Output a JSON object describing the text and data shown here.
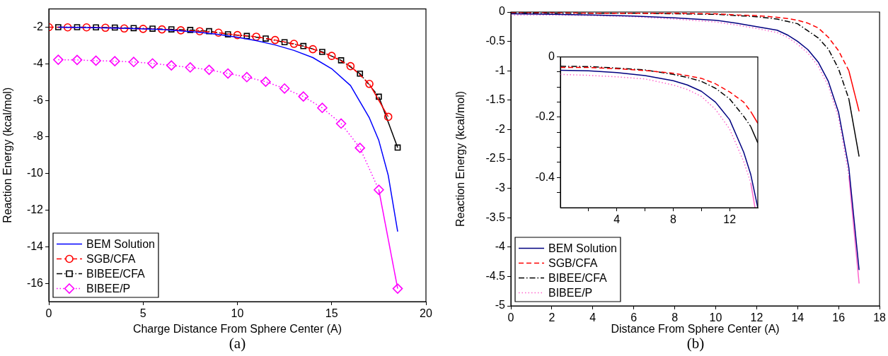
{
  "chart_data": [
    {
      "type": "line",
      "xlabel": "Charge Distance From Sphere Center (A)",
      "ylabel": "Reaction Energy (kcal/mol)",
      "xlim": [
        0,
        20
      ],
      "ylim": [
        -17,
        -1
      ],
      "xticks": [
        0,
        5,
        10,
        15,
        20
      ],
      "yticks": [
        -16,
        -14,
        -12,
        -10,
        -8,
        -6,
        -4,
        -2
      ],
      "legend": "bottom left",
      "annotations": [
        "(a)"
      ],
      "series": [
        {
          "name": "BEM Solution",
          "color": "#0000ff",
          "marker": "none",
          "line_style": "solid",
          "x": [
            0.5,
            2,
            4,
            6,
            7,
            8,
            9,
            10,
            11,
            12,
            13,
            14,
            15,
            16,
            17,
            17.5,
            18,
            18.5
          ],
          "values": [
            -2.0,
            -2.02,
            -2.06,
            -2.13,
            -2.2,
            -2.28,
            -2.4,
            -2.55,
            -2.73,
            -2.97,
            -3.27,
            -3.66,
            -4.27,
            -5.19,
            -6.96,
            -8.19,
            -10.1,
            -13.17
          ]
        },
        {
          "name": "SGB/CFA",
          "color": "#ff0000",
          "marker": "circle",
          "line_style": "dashed",
          "x": [
            0,
            1,
            2,
            3,
            4,
            5,
            6,
            7,
            8,
            9,
            10,
            11,
            12,
            13,
            14,
            15,
            16,
            17,
            18
          ],
          "values": [
            -2.0,
            -2.01,
            -2.01,
            -2.03,
            -2.07,
            -2.09,
            -2.12,
            -2.17,
            -2.22,
            -2.3,
            -2.43,
            -2.52,
            -2.7,
            -2.91,
            -3.2,
            -3.57,
            -4.13,
            -5.1,
            -6.9
          ]
        },
        {
          "name": "BIBEE/CFA",
          "color": "#000000",
          "marker": "square",
          "line_style": "dashdot",
          "x": [
            0.5,
            1.5,
            2.5,
            3.5,
            4.5,
            5.5,
            6.5,
            7.5,
            8.5,
            9.5,
            10.5,
            11.5,
            12.5,
            13.5,
            14.5,
            15.5,
            16.5,
            17.5,
            18.5
          ],
          "values": [
            -2.0,
            -2.0,
            -2.01,
            -2.02,
            -2.05,
            -2.08,
            -2.12,
            -2.15,
            -2.22,
            -2.39,
            -2.48,
            -2.62,
            -2.82,
            -3.03,
            -3.35,
            -3.81,
            -4.54,
            -5.8,
            -8.58
          ]
        },
        {
          "name": "BIBEE/P",
          "color": "#ff00ff",
          "marker": "diamond",
          "line_style": "dotted",
          "x": [
            0.5,
            1.5,
            2.5,
            3.5,
            4.5,
            5.5,
            6.5,
            7.5,
            8.5,
            9.5,
            10.5,
            11.5,
            12.5,
            13.5,
            14.5,
            15.5,
            16.5,
            17.5,
            18.5
          ],
          "values": [
            -3.78,
            -3.79,
            -3.83,
            -3.86,
            -3.9,
            -3.98,
            -4.09,
            -4.2,
            -4.33,
            -4.53,
            -4.73,
            -4.98,
            -5.35,
            -5.79,
            -6.41,
            -7.27,
            -8.6,
            -10.89,
            -16.29
          ]
        }
      ]
    },
    {
      "type": "line",
      "xlabel": "Distance From Sphere Center (A)",
      "ylabel": "Reaction Energy (kcal/mol)",
      "xlim": [
        0,
        18
      ],
      "ylim": [
        -5,
        0
      ],
      "xticks": [
        0,
        2,
        4,
        6,
        8,
        10,
        12,
        14,
        16,
        18
      ],
      "yticks": [
        -5,
        -4.5,
        -4,
        -3.5,
        -3,
        -2.5,
        -2,
        -1.5,
        -1,
        -0.5,
        0
      ],
      "legend": "bottom left",
      "annotations": [
        "(b)"
      ],
      "series": [
        {
          "name": "BEM Solution",
          "color": "#000080",
          "marker": "none",
          "line_style": "solid",
          "x": [
            0,
            2,
            4,
            6,
            8,
            10,
            11,
            12,
            13,
            13.5,
            14,
            14.5,
            15,
            15.5,
            16,
            16.5,
            17
          ],
          "values": [
            -0.03,
            -0.04,
            -0.05,
            -0.07,
            -0.1,
            -0.14,
            -0.19,
            -0.25,
            -0.31,
            -0.39,
            -0.5,
            -0.64,
            -0.85,
            -1.18,
            -1.71,
            -2.65,
            -4.39
          ]
        },
        {
          "name": "SGB/CFA",
          "color": "#ff0000",
          "marker": "none",
          "line_style": "dashed",
          "x": [
            0,
            2,
            4,
            6,
            8,
            10,
            11,
            12,
            13,
            13.5,
            14,
            14.5,
            15,
            15.5,
            16,
            16.5,
            17
          ],
          "values": [
            -0.01,
            -0.01,
            -0.02,
            -0.02,
            -0.02,
            -0.03,
            -0.05,
            -0.06,
            -0.09,
            -0.11,
            -0.14,
            -0.19,
            -0.27,
            -0.43,
            -0.66,
            -1.0,
            -1.69
          ]
        },
        {
          "name": "BIBEE/CFA",
          "color": "#000000",
          "marker": "none",
          "line_style": "dashdot",
          "x": [
            0,
            2,
            4,
            6,
            8,
            10,
            11,
            12,
            13,
            13.5,
            14,
            14.5,
            15,
            15.5,
            16,
            16.5,
            17
          ],
          "values": [
            -0.01,
            -0.02,
            -0.02,
            -0.02,
            -0.03,
            -0.04,
            -0.06,
            -0.08,
            -0.12,
            -0.16,
            -0.2,
            -0.32,
            -0.44,
            -0.63,
            -0.97,
            -1.48,
            -2.46
          ]
        },
        {
          "name": "BIBEE/P",
          "color": "#ff66cc",
          "marker": "none",
          "line_style": "dotted",
          "x": [
            0,
            2,
            4,
            6,
            8,
            10,
            11,
            12,
            13,
            13.5,
            14,
            14.5,
            15,
            15.5,
            16,
            16.5,
            17
          ],
          "values": [
            -0.05,
            -0.05,
            -0.06,
            -0.08,
            -0.12,
            -0.17,
            -0.22,
            -0.28,
            -0.35,
            -0.43,
            -0.55,
            -0.7,
            -0.92,
            -1.26,
            -1.8,
            -2.78,
            -4.62
          ]
        }
      ]
    },
    {
      "type": "line",
      "xlim": [
        0,
        14
      ],
      "ylim": [
        -0.5,
        0
      ],
      "xticks": [
        {
          "value": 2,
          "label": null
        },
        4,
        {
          "value": 6,
          "label": null
        },
        8,
        {
          "value": 10,
          "label": null
        },
        12
      ],
      "yticks": [
        {
          "value": -0.45,
          "label": null
        },
        -0.4,
        {
          "value": -0.35,
          "label": null
        },
        {
          "value": -0.3,
          "label": null
        },
        {
          "value": -0.25,
          "label": null
        },
        -0.2,
        {
          "value": -0.15,
          "label": null
        },
        {
          "value": -0.1,
          "label": null
        },
        {
          "value": -0.05,
          "label": null
        },
        0
      ],
      "series": [
        {
          "color": "#000080",
          "marker": "none",
          "line_style": "solid",
          "x": [
            0,
            2,
            4,
            6,
            8,
            9,
            10,
            11,
            12,
            13,
            13.5,
            14
          ],
          "values": [
            -0.044,
            -0.046,
            -0.052,
            -0.062,
            -0.079,
            -0.093,
            -0.114,
            -0.15,
            -0.208,
            -0.316,
            -0.39,
            -0.5
          ]
        },
        {
          "color": "#ff0000",
          "marker": "none",
          "line_style": "dashed",
          "x": [
            0,
            2,
            4,
            6,
            8,
            9,
            10,
            11,
            12,
            13,
            13.5,
            14
          ],
          "values": [
            -0.035,
            -0.035,
            -0.039,
            -0.045,
            -0.054,
            -0.062,
            -0.071,
            -0.089,
            -0.116,
            -0.15,
            -0.181,
            -0.22
          ]
        },
        {
          "color": "#000000",
          "marker": "none",
          "line_style": "dashdot",
          "x": [
            0,
            2,
            4,
            6,
            8,
            9,
            10,
            11,
            12,
            13,
            13.5,
            14
          ],
          "values": [
            -0.031,
            -0.032,
            -0.037,
            -0.043,
            -0.058,
            -0.068,
            -0.081,
            -0.104,
            -0.139,
            -0.197,
            -0.231,
            -0.285
          ]
        },
        {
          "color": "#ff66cc",
          "marker": "none",
          "line_style": "dotted",
          "x": [
            0,
            2,
            4,
            6,
            8,
            9,
            10,
            11,
            12,
            13,
            13.5,
            13.8
          ],
          "values": [
            -0.058,
            -0.061,
            -0.066,
            -0.073,
            -0.093,
            -0.108,
            -0.131,
            -0.174,
            -0.239,
            -0.347,
            -0.417,
            -0.5
          ]
        }
      ]
    }
  ]
}
